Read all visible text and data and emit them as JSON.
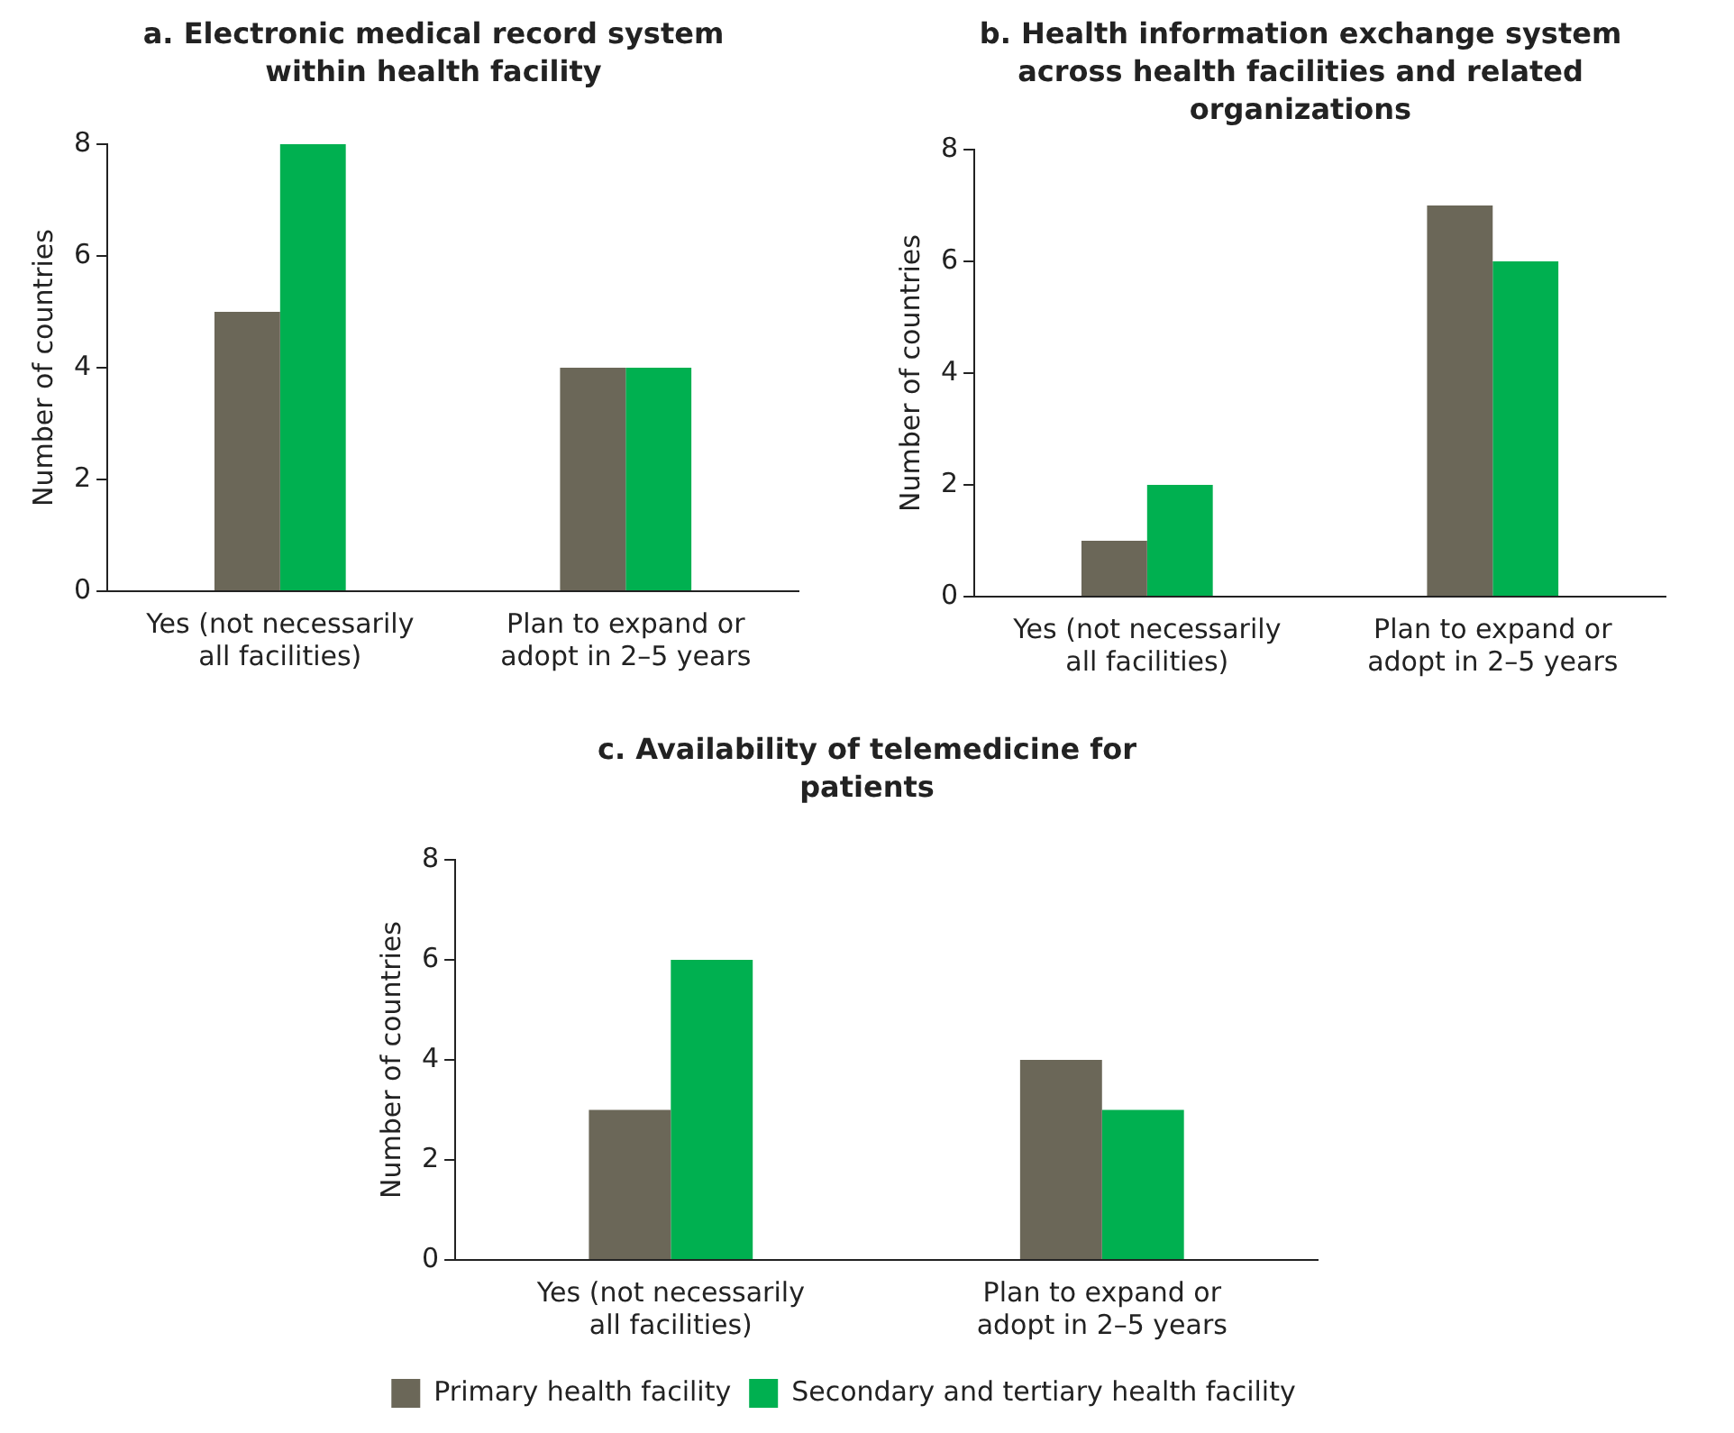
{
  "chart_data": [
    {
      "type": "bar",
      "title": "a. Electronic medical record system within health facility",
      "ylabel": "Number of countries",
      "categories": [
        "Yes (not necessarily all facilities)",
        "Plan to expand or adopt in 2–5 years"
      ],
      "series": [
        {
          "color": "#6b6758",
          "values": [
            5,
            4
          ]
        },
        {
          "color": "#00b050",
          "values": [
            8,
            4
          ]
        }
      ],
      "ylim": [
        0,
        8
      ],
      "yticks": [
        0,
        2,
        4,
        6,
        8
      ],
      "legend": false
    },
    {
      "type": "bar",
      "title": "b. Health information exchange system across health facilities and related organizations",
      "ylabel": "Number of countries",
      "categories": [
        "Yes (not necessarily all facilities)",
        "Plan to expand or adopt in 2–5 years"
      ],
      "series": [
        {
          "color": "#6b6758",
          "values": [
            1,
            7
          ]
        },
        {
          "color": "#00b050",
          "values": [
            2,
            6
          ]
        }
      ],
      "ylim": [
        0,
        8
      ],
      "yticks": [
        0,
        2,
        4,
        6,
        8
      ],
      "legend": false
    },
    {
      "type": "bar",
      "title": "c. Availability of telemedicine for patients",
      "ylabel": "Number of countries",
      "categories": [
        "Yes (not necessarily all facilities)",
        "Plan to expand or adopt in 2–5 years"
      ],
      "series": [
        {
          "name": "Primary health facility",
          "color": "#6b6758",
          "values": [
            3,
            4
          ]
        },
        {
          "name": "Secondary and tertiary health facility",
          "color": "#00b050",
          "values": [
            6,
            3
          ]
        }
      ],
      "ylim": [
        0,
        8
      ],
      "yticks": [
        0,
        2,
        4,
        6,
        8
      ],
      "legend": "bottom"
    }
  ]
}
